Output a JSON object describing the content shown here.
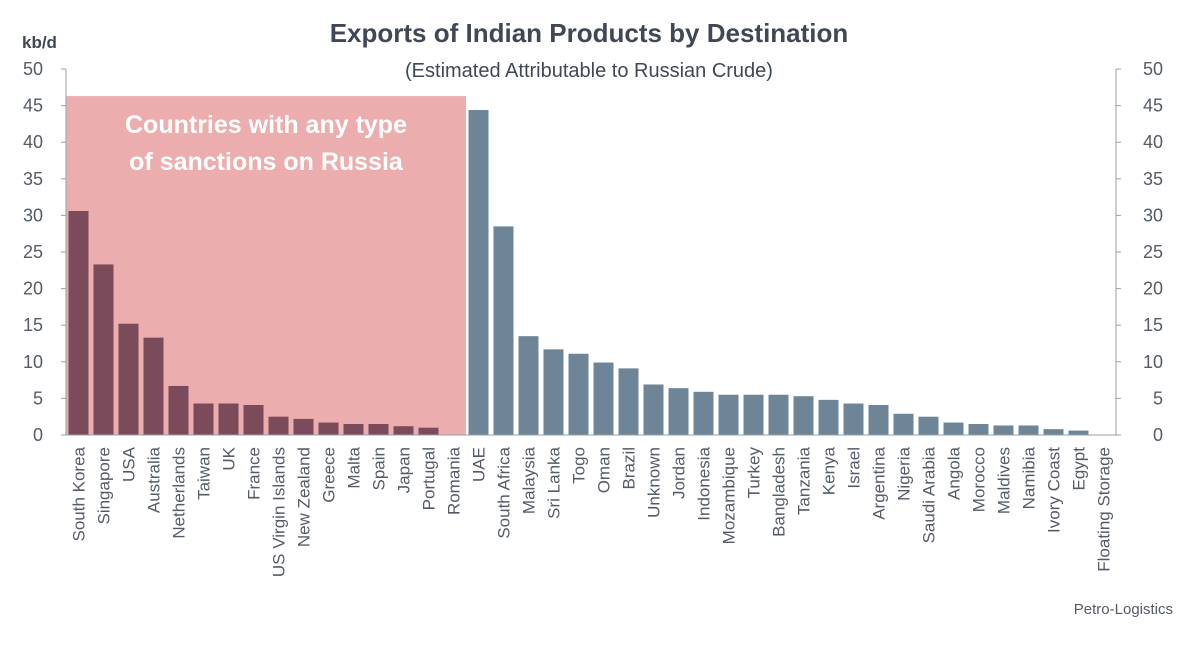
{
  "chart_data": {
    "type": "bar",
    "title": "Exports of Indian Products by Destination",
    "subtitle": "(Estimated Attributable to Russian Crude)",
    "unit_label": "kb/d",
    "source": "Petro-Logistics",
    "ylim": [
      0,
      50
    ],
    "yticks": [
      0,
      5,
      10,
      15,
      20,
      25,
      30,
      35,
      40,
      45,
      50
    ],
    "right_axis": true,
    "grid": false,
    "categories": [
      "South Korea",
      "Singapore",
      "USA",
      "Australia",
      "Netherlands",
      "Taiwan",
      "UK",
      "France",
      "US Virgin Islands",
      "New Zealand",
      "Greece",
      "Malta",
      "Spain",
      "Japan",
      "Portugal",
      "Romania",
      "UAE",
      "South Africa",
      "Malaysia",
      "Sri Lanka",
      "Togo",
      "Oman",
      "Brazil",
      "Unknown",
      "Jordan",
      "Indonesia",
      "Mozambique",
      "Turkey",
      "Bangladesh",
      "Tanzania",
      "Kenya",
      "Israel",
      "Argentina",
      "Nigeria",
      "Saudi Arabia",
      "Angola",
      "Morocco",
      "Maldives",
      "Namibia",
      "Ivory Coast",
      "Egypt",
      "Floating Storage"
    ],
    "values": [
      30.6,
      23.3,
      15.2,
      13.3,
      6.7,
      4.3,
      4.3,
      4.1,
      2.5,
      2.2,
      1.7,
      1.5,
      1.5,
      1.2,
      1.0,
      0,
      44.4,
      28.5,
      13.5,
      11.7,
      11.1,
      9.9,
      9.1,
      6.9,
      6.4,
      5.9,
      5.5,
      5.5,
      5.5,
      5.3,
      4.8,
      4.3,
      4.1,
      2.9,
      2.5,
      1.7,
      1.5,
      1.3,
      1.3,
      0.8,
      0.6,
      0
    ],
    "sanctioned_count": 16,
    "shaded_region": {
      "label_lines": [
        "Countries with any type",
        "of sanctions on Russia"
      ],
      "from_category": "South Korea",
      "to_category": "Romania",
      "top_value": 46.3
    },
    "colors": {
      "sanctioned_bar": "#7b4a5b",
      "other_bar": "#6e8598",
      "shade": "#ebadad",
      "axis": "#9aa0a6"
    }
  }
}
